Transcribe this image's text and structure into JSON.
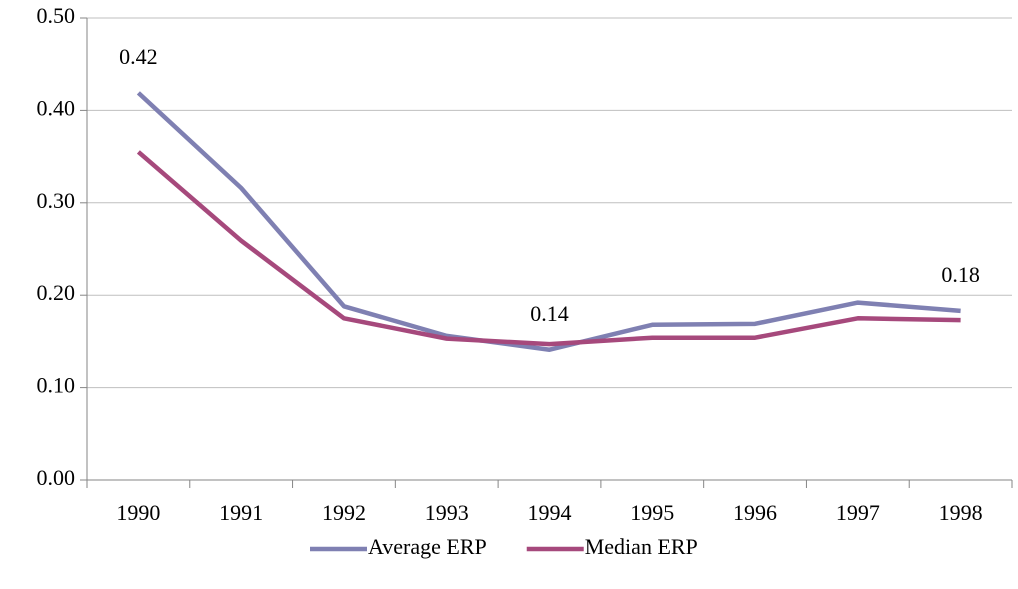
{
  "chart_data": {
    "type": "line",
    "categories": [
      "1990",
      "1991",
      "1992",
      "1993",
      "1994",
      "1995",
      "1996",
      "1997",
      "1998"
    ],
    "series": [
      {
        "name": "Average ERP",
        "color": "#7f80b2",
        "values": [
          0.419,
          0.316,
          0.188,
          0.156,
          0.141,
          0.168,
          0.169,
          0.192,
          0.183
        ],
        "value_labels": [
          "0.42",
          null,
          null,
          null,
          "0.14",
          null,
          null,
          null,
          "0.18"
        ]
      },
      {
        "name": "Median ERP",
        "color": "#a6497c",
        "values": [
          0.355,
          0.259,
          0.175,
          0.153,
          0.147,
          0.154,
          0.154,
          0.175,
          0.173
        ]
      }
    ],
    "ylim": [
      0,
      0.5
    ],
    "yticks": [
      {
        "value": 0,
        "label": "0.00"
      },
      {
        "value": 0.1,
        "label": "0.10"
      },
      {
        "value": 0.2,
        "label": "0.20"
      },
      {
        "value": 0.3,
        "label": "0.30"
      },
      {
        "value": 0.4,
        "label": "0.40"
      },
      {
        "value": 0.5,
        "label": "0.50"
      }
    ],
    "grid": true,
    "legend": "bottom"
  }
}
